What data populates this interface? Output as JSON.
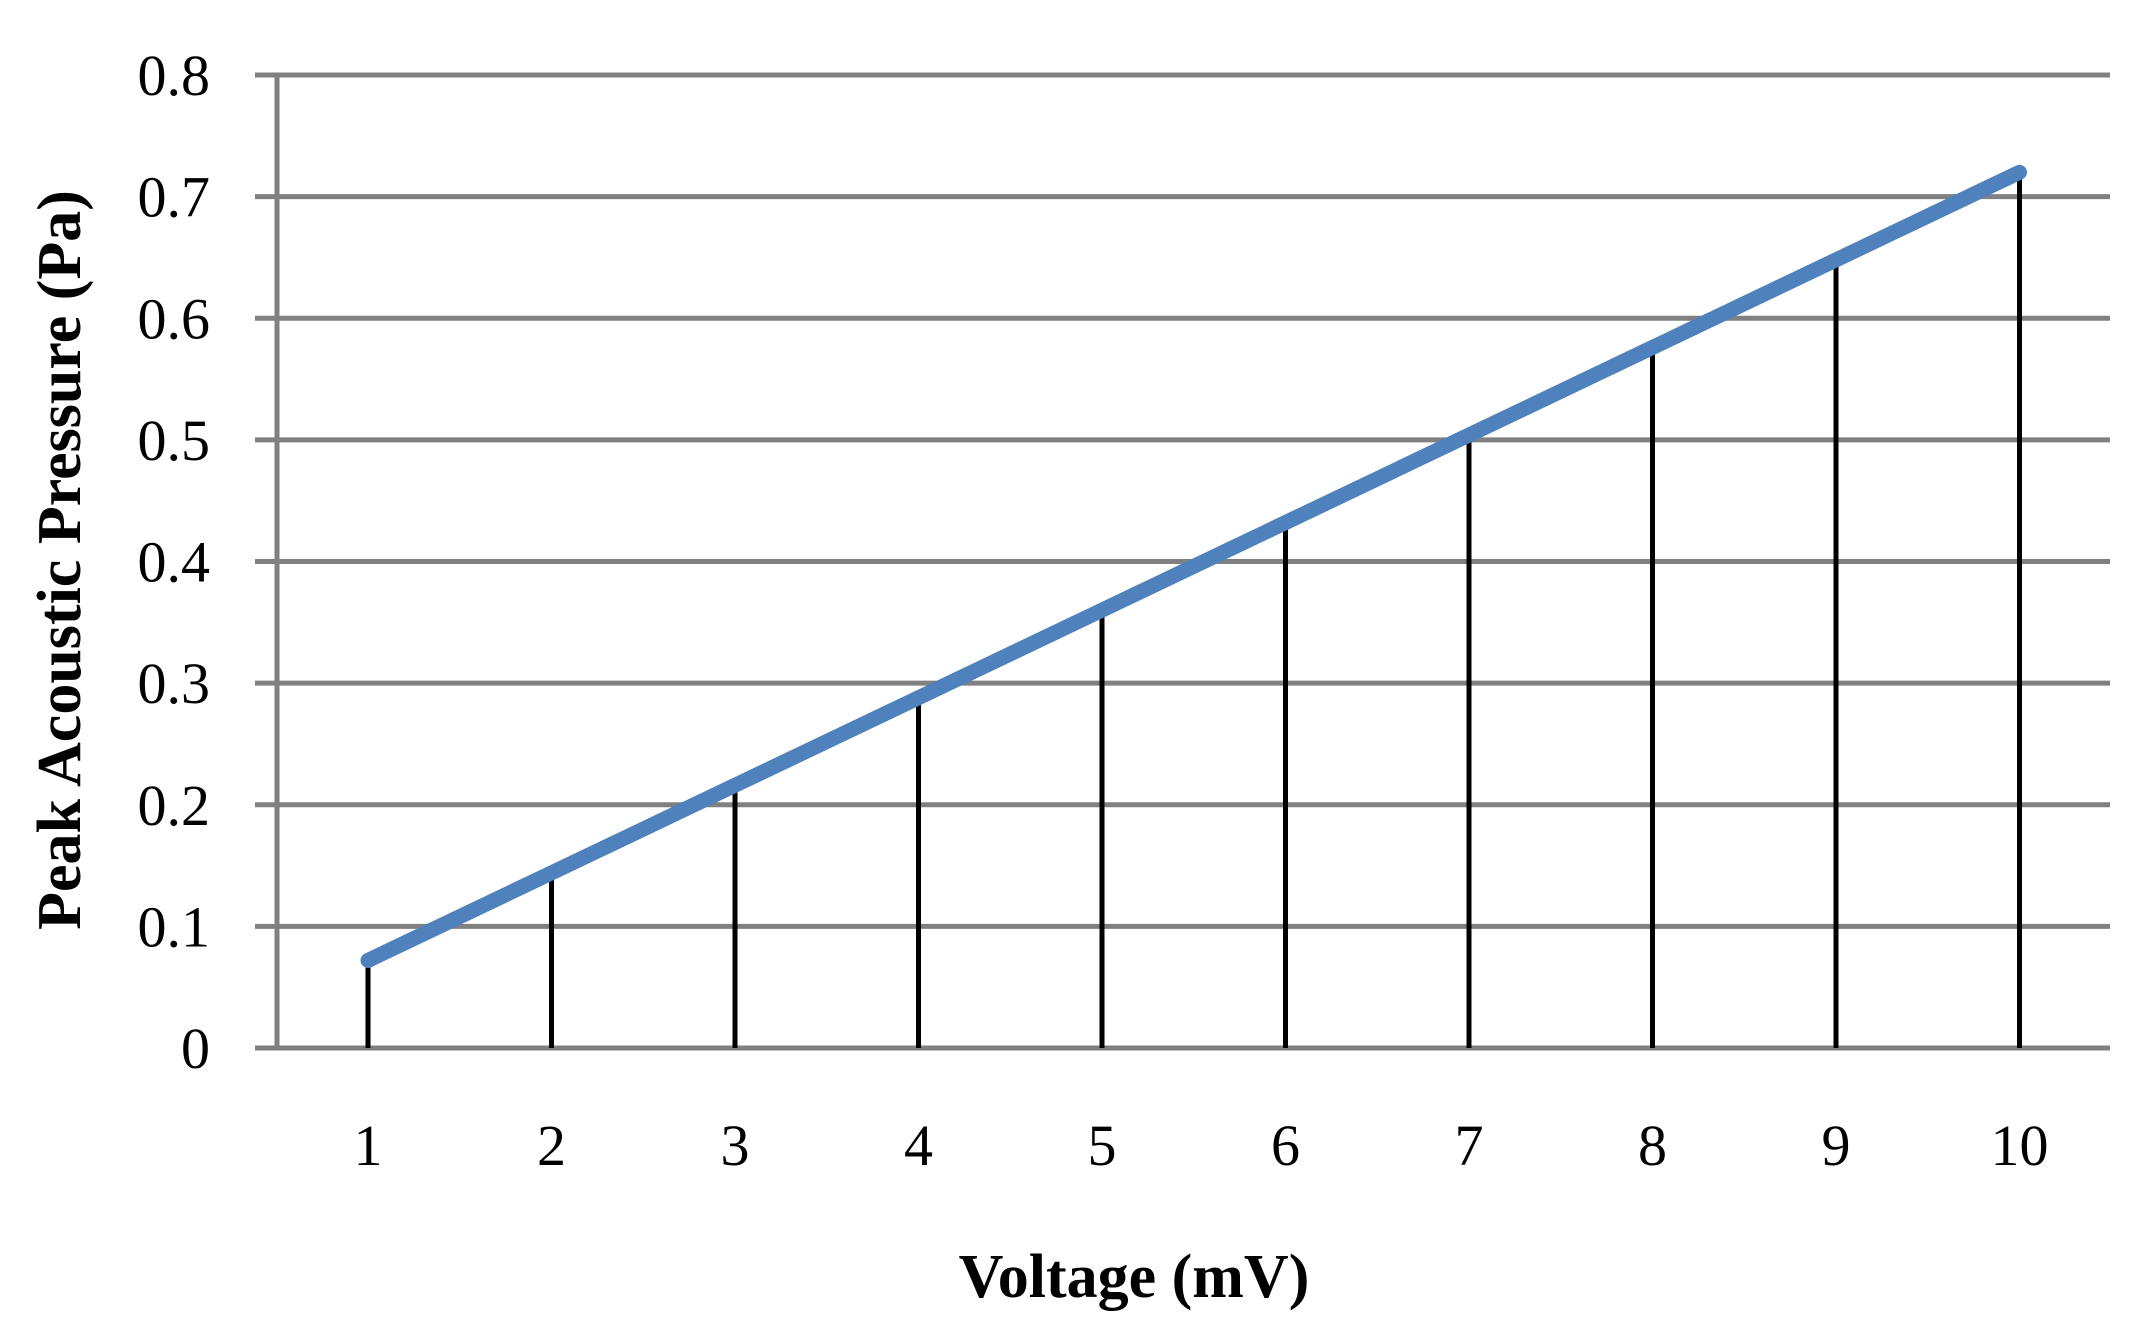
{
  "chart_data": {
    "type": "line",
    "title": "",
    "xlabel": "Voltage (mV)",
    "ylabel": "Peak Acoustic Pressure (Pa)",
    "categories": [
      "1",
      "2",
      "3",
      "4",
      "5",
      "6",
      "7",
      "8",
      "9",
      "10"
    ],
    "x": [
      1,
      2,
      3,
      4,
      5,
      6,
      7,
      8,
      9,
      10
    ],
    "series": [
      {
        "values": [
          0.072,
          0.144,
          0.216,
          0.288,
          0.36,
          0.432,
          0.504,
          0.576,
          0.648,
          0.72
        ]
      }
    ],
    "drop_lines": true,
    "ylim": [
      0,
      0.8
    ],
    "yticks": [
      0,
      0.1,
      0.2,
      0.3,
      0.4,
      0.5,
      0.6,
      0.7,
      0.8
    ],
    "ytick_labels": [
      "0",
      "0.1",
      "0.2",
      "0.3",
      "0.4",
      "0.5",
      "0.6",
      "0.7",
      "0.8"
    ],
    "grid": true,
    "legend": "none",
    "colors": {
      "line": "#4f81bd",
      "drop_line": "#000000",
      "grid": "#808080"
    }
  }
}
